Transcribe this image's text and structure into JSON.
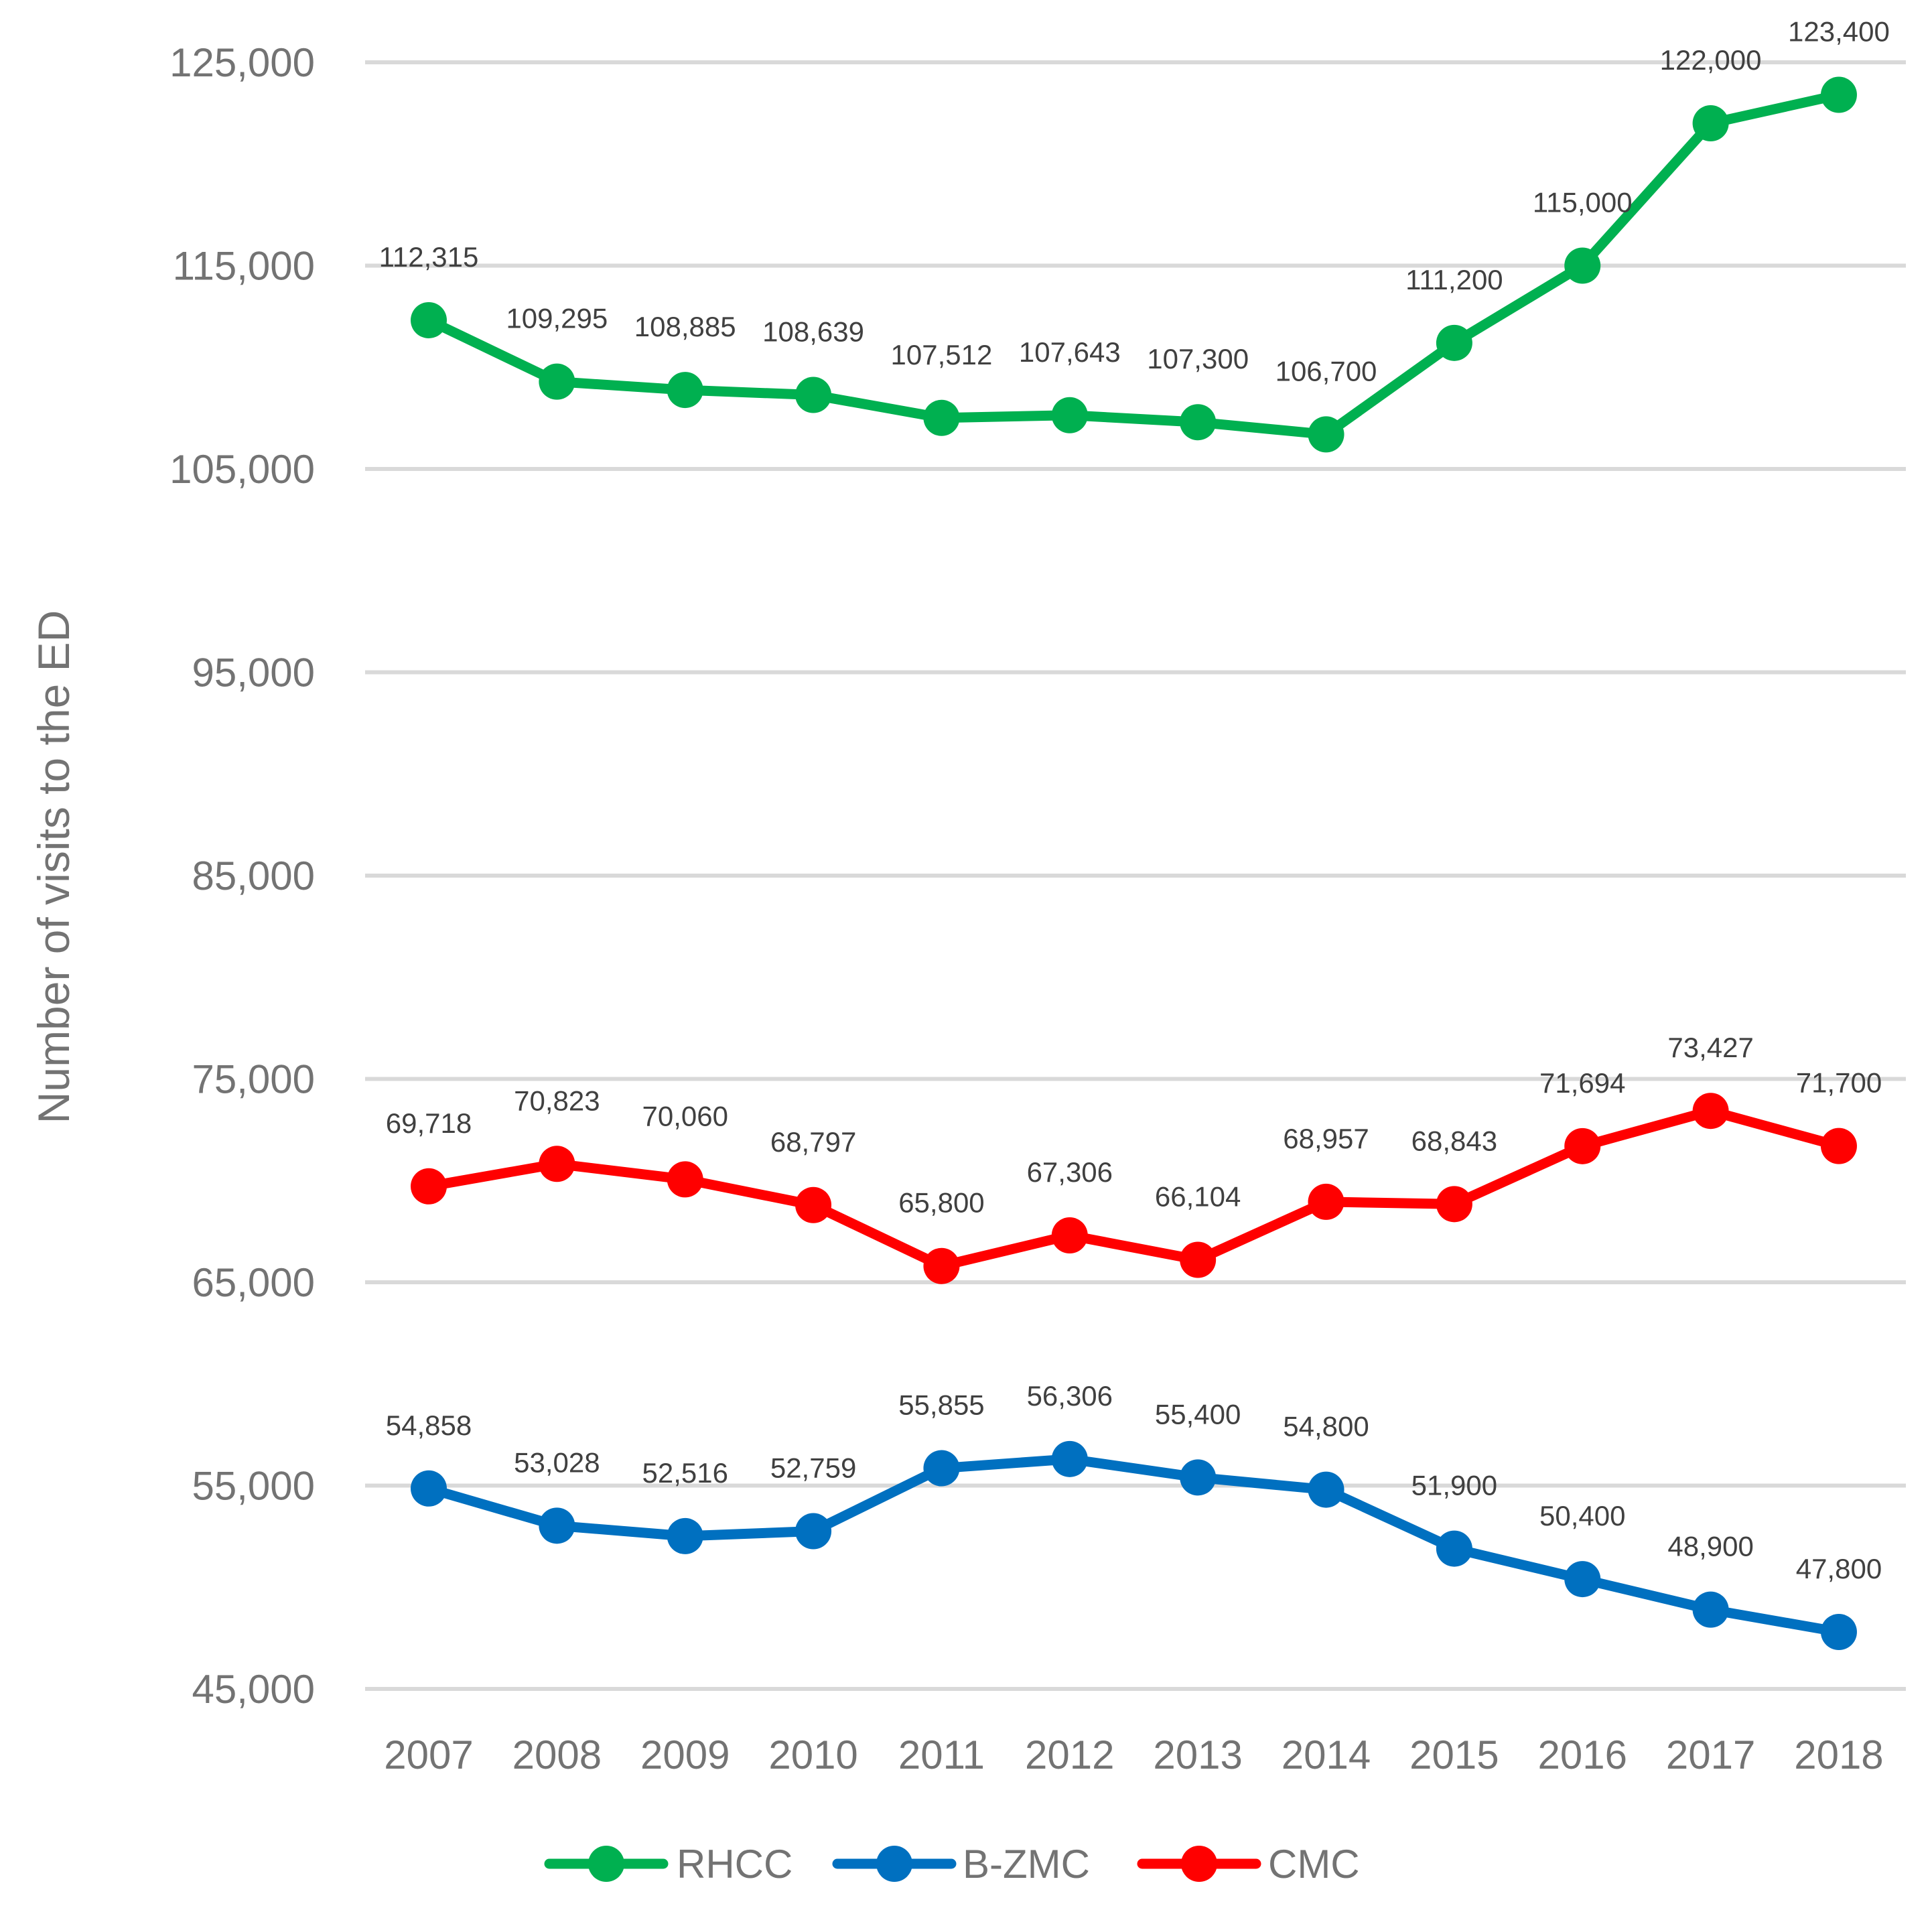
{
  "chart_data": {
    "type": "line",
    "title": "",
    "xlabel": "",
    "ylabel": "Number of visits to the ED",
    "ylim": [
      45000,
      125000
    ],
    "yticks": [
      45000,
      55000,
      65000,
      75000,
      85000,
      95000,
      105000,
      115000,
      125000
    ],
    "ytick_labels": [
      "45,000",
      "55,000",
      "65,000",
      "75,000",
      "85,000",
      "95,000",
      "105,000",
      "115,000",
      "125,000"
    ],
    "categories": [
      "2007",
      "2008",
      "2009",
      "2010",
      "2011",
      "2012",
      "2013",
      "2014",
      "2015",
      "2016",
      "2017",
      "2018"
    ],
    "grid": true,
    "legend_position": "bottom",
    "series": [
      {
        "name": "RHCC",
        "color": "#00b050",
        "values": [
          112315,
          109295,
          108885,
          108639,
          107512,
          107643,
          107300,
          106700,
          111200,
          115000,
          122000,
          123400
        ],
        "labels": [
          "112,315",
          "109,295",
          "108,885",
          "108,639",
          "107,512",
          "107,643",
          "107,300",
          "106,700",
          "111,200",
          "115,000",
          "122,000",
          "123,400"
        ]
      },
      {
        "name": "B-ZMC",
        "color": "#0070c0",
        "values": [
          54858,
          53028,
          52516,
          52759,
          55855,
          56306,
          55400,
          54800,
          51900,
          50400,
          48900,
          47800
        ],
        "labels": [
          "54,858",
          "53,028",
          "52,516",
          "52,759",
          "55,855",
          "56,306",
          "55,400",
          "54,800",
          "51,900",
          "50,400",
          "48,900",
          "47,800"
        ]
      },
      {
        "name": "CMC",
        "color": "#ff0000",
        "values": [
          69718,
          70823,
          70060,
          68797,
          65800,
          67306,
          66104,
          68957,
          68843,
          71694,
          73427,
          71700
        ],
        "labels": [
          "69,718",
          "70,823",
          "70,060",
          "68,797",
          "65,800",
          "67,306",
          "66,104",
          "68,957",
          "68,843",
          "71,694",
          "73,427",
          "71,700"
        ]
      }
    ]
  }
}
